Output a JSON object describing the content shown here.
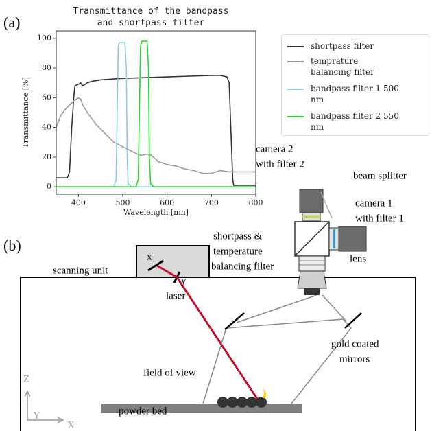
{
  "chart_data": {
    "type": "line",
    "title": "Transmittance of the bandpass and shortpass filter",
    "panel_label": "(a)",
    "x_label": "Wavelength [nm]",
    "y_label": "Transmittance [%]",
    "xlim": [
      350,
      800
    ],
    "xticks": [
      400,
      500,
      600,
      700,
      800
    ],
    "ylim": [
      -5,
      105
    ],
    "yticks": [
      0,
      20,
      40,
      60,
      80,
      100
    ],
    "series": [
      {
        "name": "shortpass filter",
        "color": "#333333",
        "x": [
          350,
          375,
          380,
          385,
          390,
          392,
          400,
          405,
          410,
          420,
          430,
          450,
          500,
          550,
          600,
          650,
          700,
          720,
          735,
          740,
          745,
          748,
          750,
          800
        ],
        "values": [
          6,
          6,
          10,
          40,
          62,
          68,
          69,
          70,
          68,
          70,
          71,
          72,
          73,
          73.5,
          74,
          74.5,
          75,
          75,
          74,
          70,
          30,
          5,
          1,
          1
        ]
      },
      {
        "name": "temprature balancing filter",
        "color": "#999999",
        "x": [
          350,
          360,
          370,
          380,
          390,
          400,
          405,
          410,
          420,
          440,
          460,
          480,
          500,
          520,
          540,
          555,
          565,
          580,
          600,
          620,
          640,
          660,
          680,
          700,
          720,
          740,
          760,
          800
        ],
        "values": [
          40,
          48,
          52,
          55,
          58,
          60,
          59,
          55,
          50,
          42,
          36,
          30,
          27,
          24,
          21,
          22,
          21,
          17,
          15,
          14,
          12,
          11,
          9,
          9,
          11,
          10,
          10,
          10
        ]
      },
      {
        "name": "bandpass filter 1 500 nm",
        "color": "#87ceeb",
        "x": [
          350,
          480,
          485,
          488,
          490,
          492,
          505,
          508,
          510,
          512,
          520,
          800
        ],
        "values": [
          0,
          0,
          5,
          60,
          95,
          97,
          97,
          80,
          20,
          2,
          0,
          0
        ]
      },
      {
        "name": "bandpass filter 2 550 nm",
        "color": "#22dd22",
        "x": [
          350,
          530,
          535,
          538,
          540,
          543,
          555,
          558,
          560,
          563,
          570,
          800
        ],
        "values": [
          0,
          0,
          5,
          60,
          95,
          98,
          98,
          80,
          20,
          2,
          0,
          0
        ]
      }
    ]
  },
  "diagram": {
    "panel_label": "(b)",
    "camera_2": [
      "camera 2",
      "with filter 2"
    ],
    "beam_splitter": "beam splitter",
    "camera_1": [
      "camera 1",
      "with filter 1"
    ],
    "filter": [
      "shortpass &",
      "temperature",
      "balancing filter"
    ],
    "lens": "lens",
    "scanning_unit": "scanning unit",
    "mirror_x": "x",
    "mirror_y": "y",
    "laser": "laser",
    "gold_mirrors": [
      "gold coated",
      "mirrors"
    ],
    "field_of_view": "field of view",
    "powder_bed": "powder bed",
    "axis_z": "Z",
    "axis_y": "Y",
    "axis_x": "X"
  }
}
